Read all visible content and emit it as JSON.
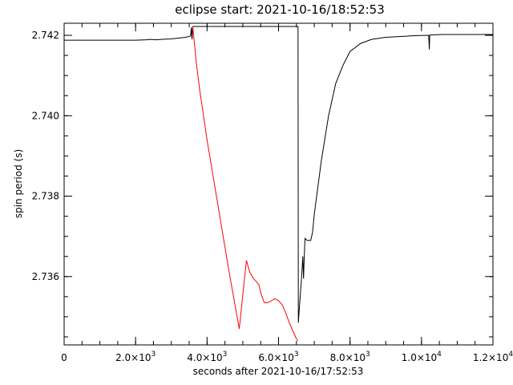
{
  "chart_data": {
    "type": "line",
    "title": "eclipse start: 2021-10-16/18:52:53",
    "xlabel": "seconds after 2021-10-16/17:52:53",
    "ylabel": "spin period (s)",
    "xlim": [
      0,
      12000
    ],
    "ylim": [
      2.7343,
      2.7423
    ],
    "grid": false,
    "legend": "none",
    "x_ticks": [
      {
        "value": 0,
        "label": "0",
        "mantissa": "",
        "exponent": ""
      },
      {
        "value": 2000,
        "label": "",
        "mantissa": "2.0×10",
        "exponent": "3"
      },
      {
        "value": 4000,
        "label": "",
        "mantissa": "4.0×10",
        "exponent": "3"
      },
      {
        "value": 6000,
        "label": "",
        "mantissa": "6.0×10",
        "exponent": "3"
      },
      {
        "value": 8000,
        "label": "",
        "mantissa": "8.0×10",
        "exponent": "3"
      },
      {
        "value": 10000,
        "label": "",
        "mantissa": "1.0×10",
        "exponent": "4"
      },
      {
        "value": 12000,
        "label": "",
        "mantissa": "1.2×10",
        "exponent": "4"
      }
    ],
    "x_minor_step": 500,
    "y_ticks": [
      {
        "value": 2.736,
        "label": "2.736"
      },
      {
        "value": 2.738,
        "label": "2.738"
      },
      {
        "value": 2.74,
        "label": "2.740"
      },
      {
        "value": 2.742,
        "label": "2.742"
      }
    ],
    "y_minor_step": 0.0005,
    "series": [
      {
        "color": "#000000",
        "x": [
          0,
          1000,
          2000,
          2300,
          2400,
          2600,
          2700,
          3000,
          3400,
          3540,
          3560,
          3580,
          3600,
          6545,
          6555,
          6600,
          6640,
          6680,
          6700,
          6720,
          6740,
          6800,
          6900,
          6950,
          7000,
          7200,
          7400,
          7600,
          7800,
          8000,
          8300,
          8600,
          9000,
          9400,
          9800,
          10200,
          10220,
          10230,
          10260,
          10600,
          11000,
          11500,
          12000
        ],
        "y": [
          2.74188,
          2.74188,
          2.74188,
          2.74189,
          2.7419,
          2.74189,
          2.7419,
          2.74191,
          2.74195,
          2.74198,
          2.7422,
          2.7419,
          2.74222,
          2.74222,
          2.73485,
          2.73545,
          2.7359,
          2.7365,
          2.73595,
          2.7365,
          2.73695,
          2.7369,
          2.7369,
          2.7371,
          2.73755,
          2.7389,
          2.74,
          2.7408,
          2.74125,
          2.7416,
          2.7418,
          2.7419,
          2.74195,
          2.74197,
          2.74199,
          2.742,
          2.74165,
          2.742,
          2.74201,
          2.74202,
          2.74202,
          2.74202,
          2.74202
        ]
      },
      {
        "color": "#ff0000",
        "x": [
          3600,
          3700,
          3800,
          3900,
          4000,
          4300,
          4600,
          4900,
          5100,
          5200,
          5300,
          5400,
          5450,
          5500,
          5600,
          5700,
          5800,
          5900,
          6000,
          6100,
          6200,
          6300,
          6400,
          6500,
          6545
        ],
        "y": [
          2.74222,
          2.7413,
          2.7406,
          2.74,
          2.7394,
          2.7378,
          2.7362,
          2.7347,
          2.7364,
          2.7361,
          2.73595,
          2.73585,
          2.7358,
          2.7356,
          2.73535,
          2.73535,
          2.7354,
          2.73545,
          2.7354,
          2.7353,
          2.7351,
          2.73485,
          2.73465,
          2.73445,
          2.7344
        ]
      }
    ]
  }
}
